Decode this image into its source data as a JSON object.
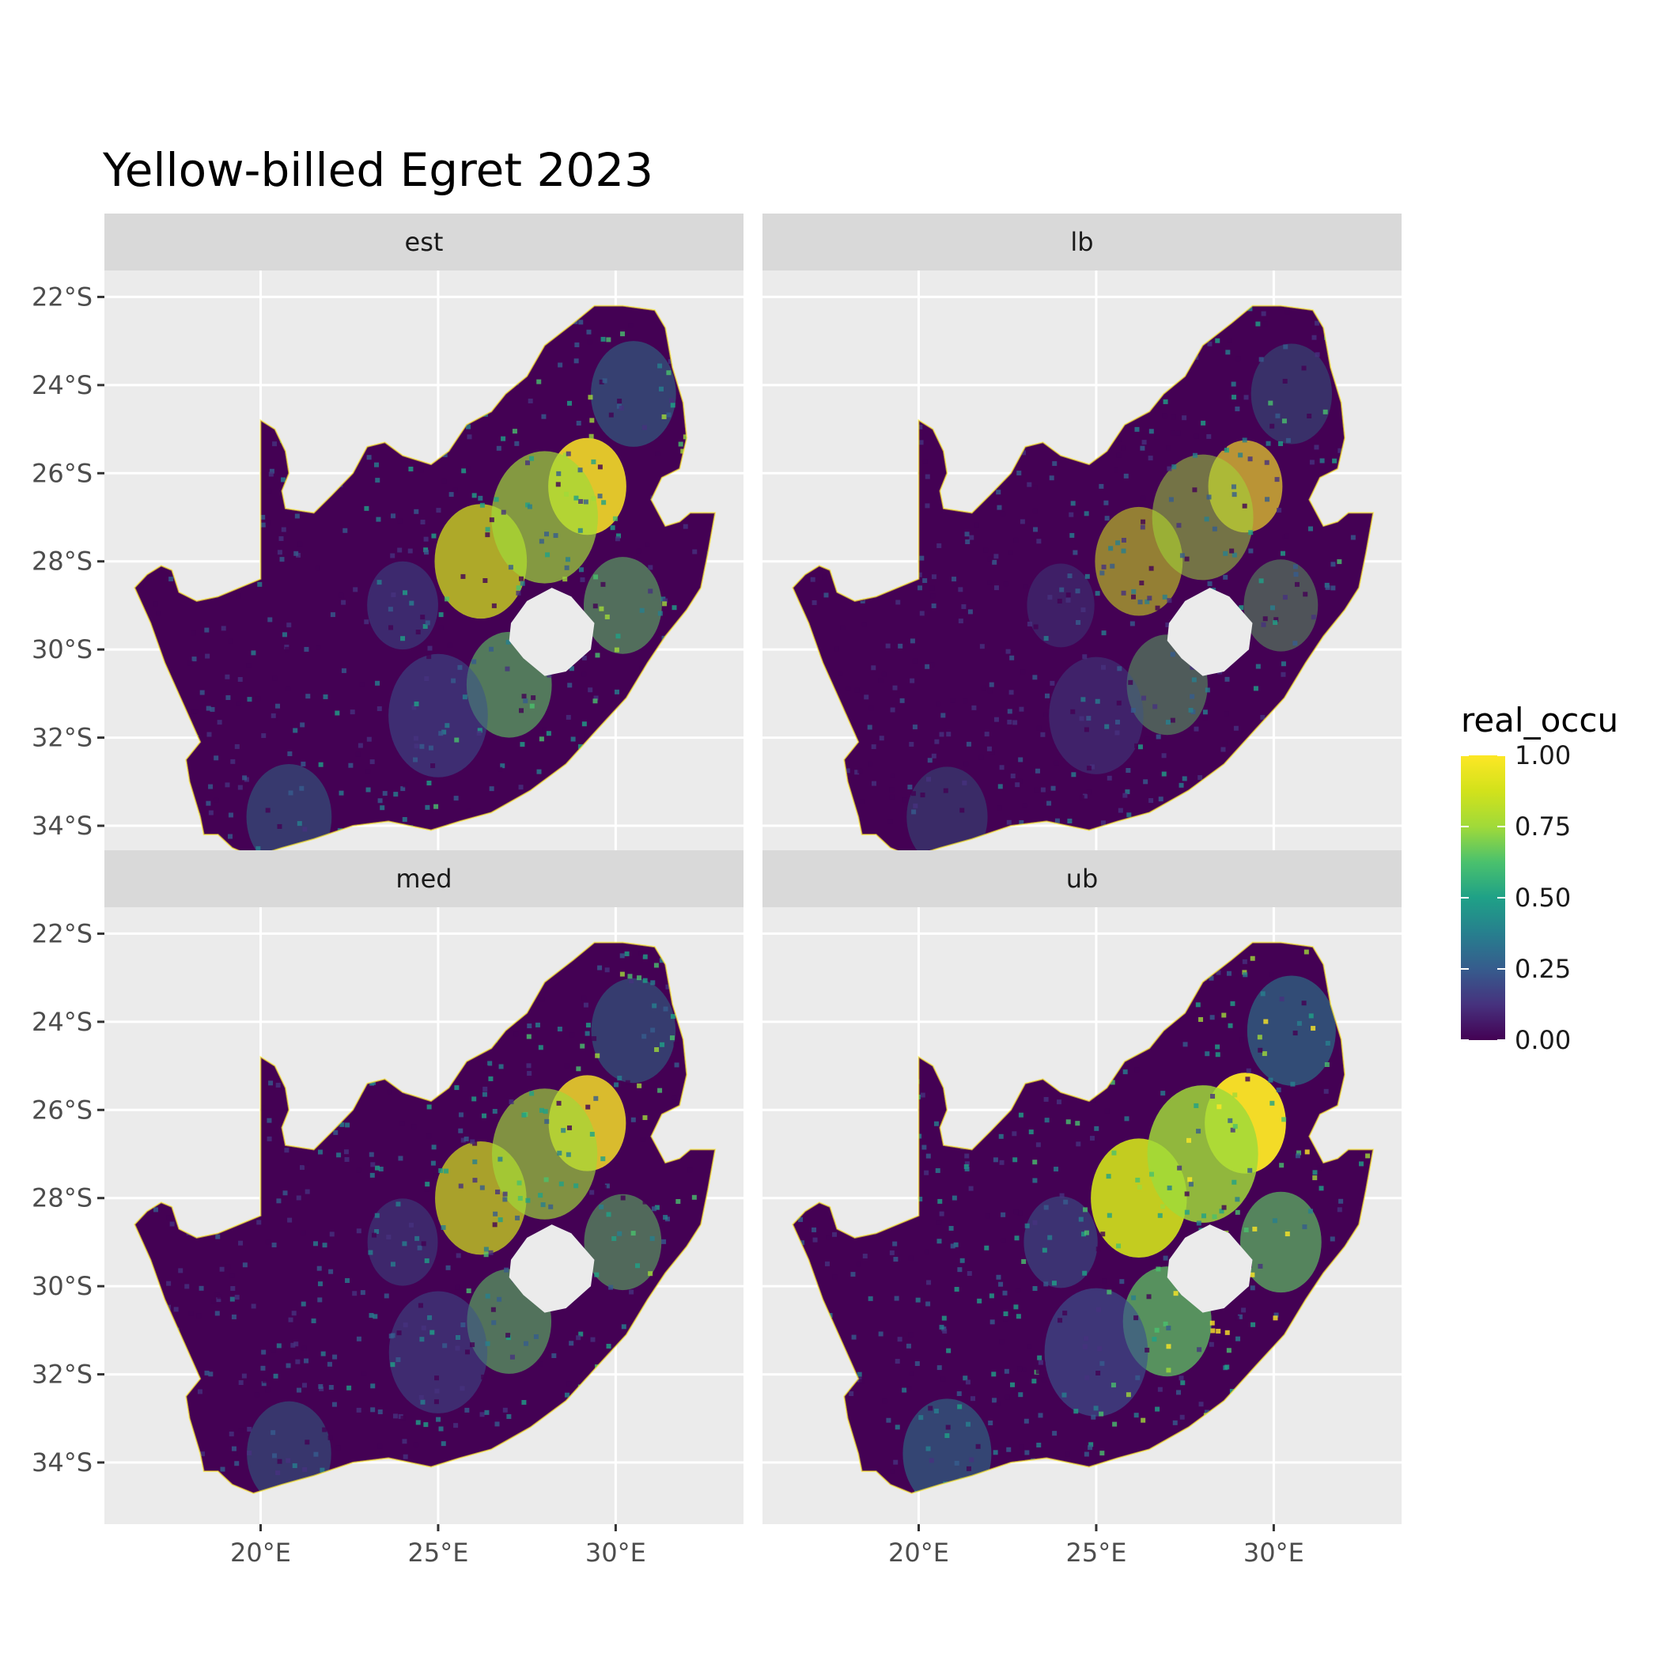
{
  "title": "Yellow-billed Egret 2023",
  "chart_data": {
    "type": "heatmap",
    "title": "Yellow-billed Egret 2023",
    "facets": [
      "est",
      "lb",
      "med",
      "ub"
    ],
    "x_ticks": [
      "20°E",
      "25°E",
      "30°E"
    ],
    "x_tick_values": [
      20,
      25,
      30
    ],
    "y_ticks": [
      "22°S",
      "24°S",
      "26°S",
      "28°S",
      "30°S",
      "32°S",
      "34°S"
    ],
    "y_tick_values": [
      -22,
      -24,
      -26,
      -28,
      -30,
      -32,
      -34
    ],
    "xlim": [
      15.6,
      33.6
    ],
    "ylim": [
      -35.4,
      -21.4
    ],
    "grid": true,
    "colormap": "viridis",
    "legend": {
      "title": "real_occu",
      "position": "right",
      "labels": [
        "1.00",
        "0.75",
        "0.50",
        "0.25",
        "0.00"
      ],
      "values": [
        1.0,
        0.75,
        0.5,
        0.25,
        0.0
      ]
    },
    "colors": [
      "#440154",
      "#3b528b",
      "#21918c",
      "#5ec962",
      "#fde725"
    ]
  }
}
